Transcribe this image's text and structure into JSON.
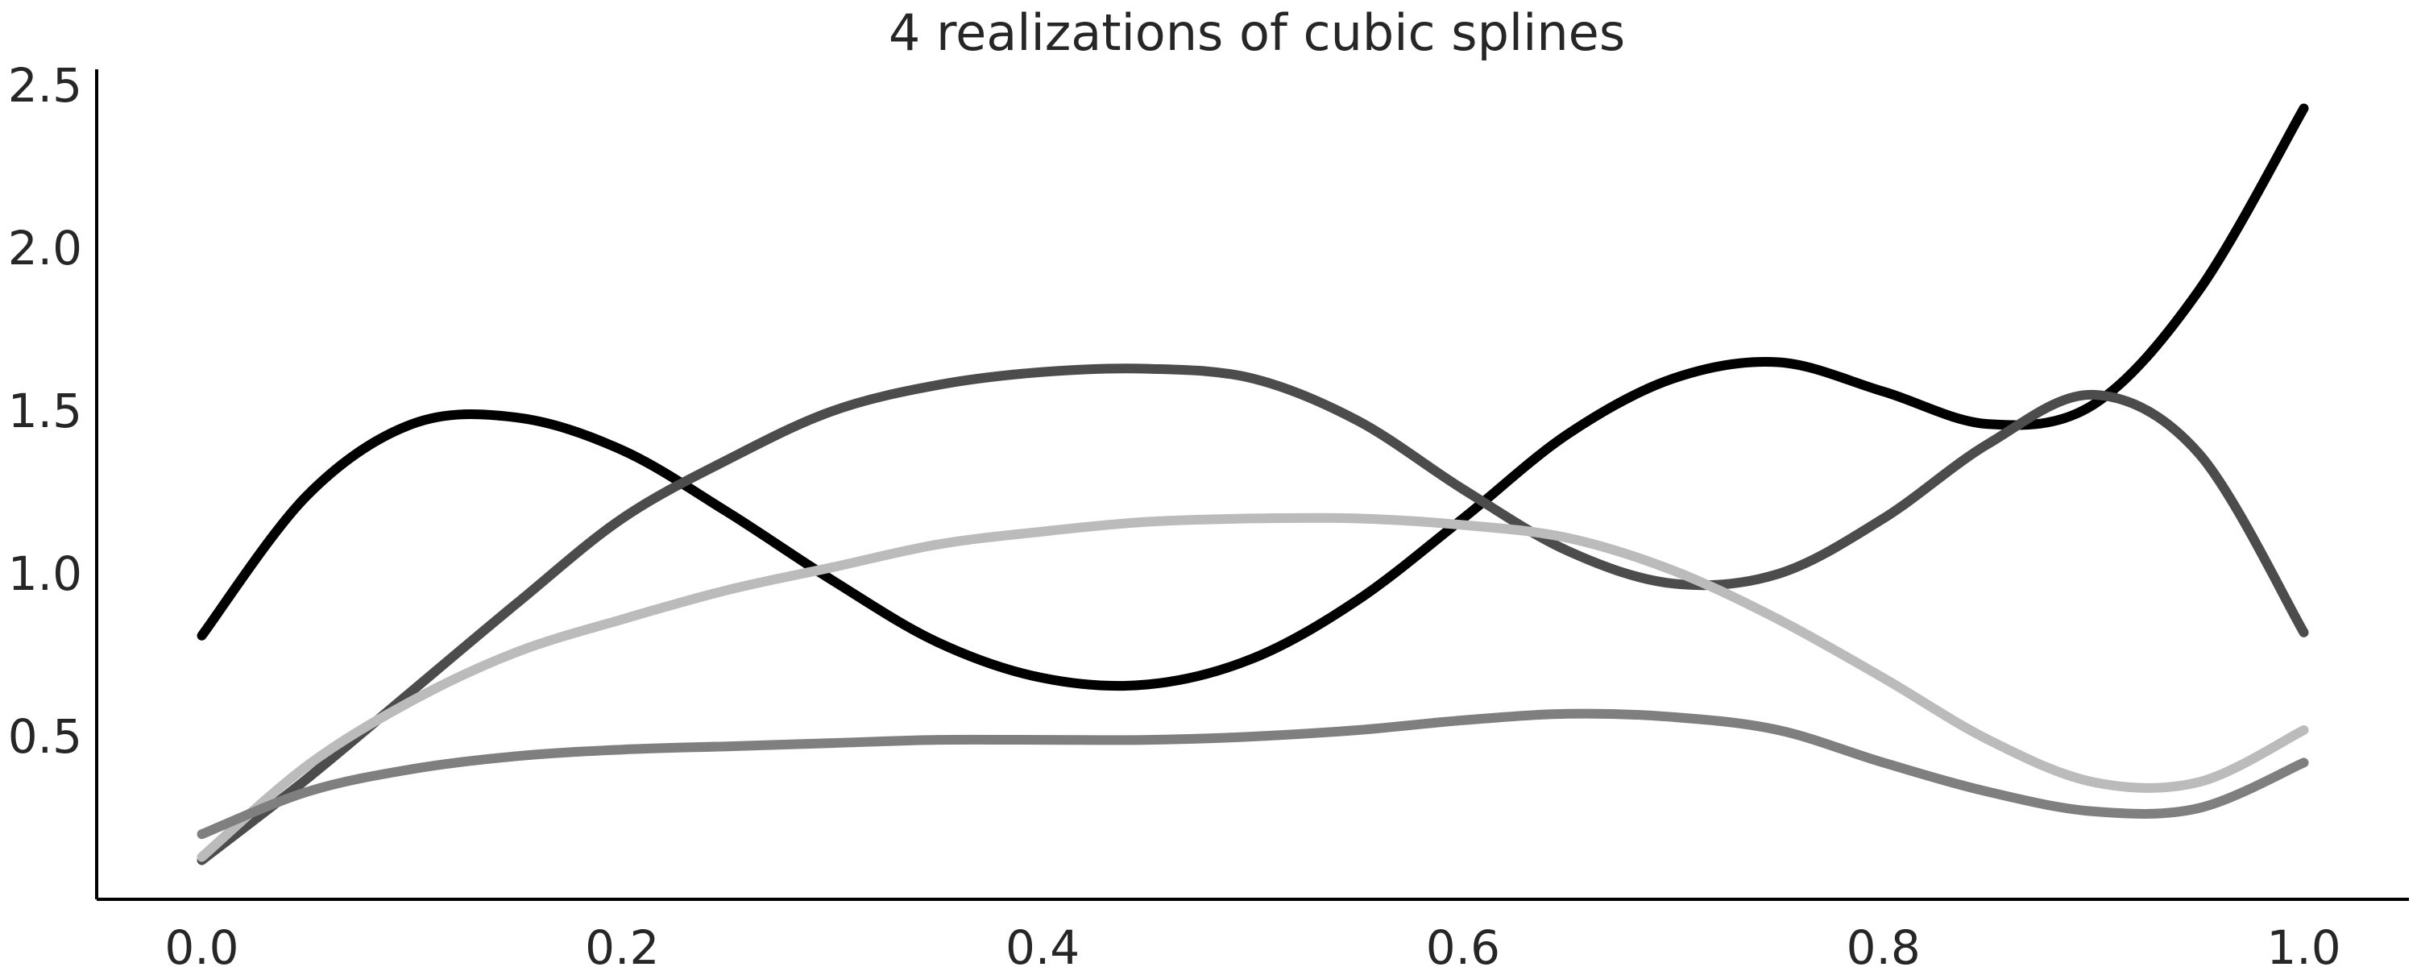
{
  "chart_data": {
    "type": "line",
    "title": "4 realizations of cubic splines",
    "xlabel": "",
    "ylabel": "",
    "xlim": [
      -0.05,
      1.05
    ],
    "ylim": [
      0.0,
      2.55
    ],
    "xticks": [
      0.0,
      0.2,
      0.4,
      0.6,
      0.8,
      1.0
    ],
    "xtick_labels": [
      "0.0",
      "0.2",
      "0.4",
      "0.6",
      "0.8",
      "1.0"
    ],
    "yticks": [
      0.5,
      1.0,
      1.5,
      2.0,
      2.5
    ],
    "ytick_labels": [
      "0.5",
      "1.0",
      "1.5",
      "2.0",
      "2.5"
    ],
    "grid": false,
    "x": [
      0.0,
      0.05,
      0.1,
      0.15,
      0.2,
      0.25,
      0.3,
      0.35,
      0.4,
      0.45,
      0.5,
      0.55,
      0.6,
      0.65,
      0.7,
      0.75,
      0.8,
      0.85,
      0.9,
      0.95,
      1.0
    ],
    "series": [
      {
        "color": "#000000",
        "values": [
          0.81,
          1.24,
          1.46,
          1.48,
          1.38,
          1.19,
          0.98,
          0.79,
          0.68,
          0.66,
          0.74,
          0.92,
          1.17,
          1.43,
          1.6,
          1.65,
          1.56,
          1.46,
          1.52,
          1.87,
          2.43
        ]
      },
      {
        "color": "#4c4c4c",
        "values": [
          0.12,
          0.37,
          0.64,
          0.91,
          1.17,
          1.35,
          1.5,
          1.58,
          1.62,
          1.63,
          1.6,
          1.47,
          1.26,
          1.07,
          0.97,
          1.0,
          1.17,
          1.4,
          1.55,
          1.37,
          0.82
        ]
      },
      {
        "color": "#bbbbbb",
        "values": [
          0.13,
          0.41,
          0.61,
          0.76,
          0.86,
          0.95,
          1.02,
          1.09,
          1.13,
          1.16,
          1.17,
          1.17,
          1.15,
          1.11,
          1.01,
          0.86,
          0.68,
          0.49,
          0.36,
          0.36,
          0.52
        ]
      },
      {
        "color": "#7f7f7f",
        "values": [
          0.2,
          0.33,
          0.4,
          0.44,
          0.46,
          0.47,
          0.48,
          0.49,
          0.49,
          0.49,
          0.5,
          0.52,
          0.55,
          0.57,
          0.56,
          0.52,
          0.42,
          0.33,
          0.27,
          0.28,
          0.42
        ]
      }
    ]
  }
}
